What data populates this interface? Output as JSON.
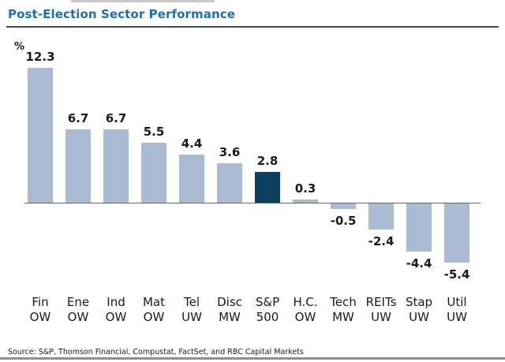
{
  "header": {
    "title": "Post-Election Sector Performance"
  },
  "chart_data": {
    "type": "bar",
    "title": "Post-Election Sector Performance",
    "xlabel": "",
    "ylabel": "%",
    "categories": [
      {
        "line1": "Fin",
        "line2": "OW"
      },
      {
        "line1": "Ene",
        "line2": "OW"
      },
      {
        "line1": "Ind",
        "line2": "OW"
      },
      {
        "line1": "Mat",
        "line2": "OW"
      },
      {
        "line1": "Tel",
        "line2": "UW"
      },
      {
        "line1": "Disc",
        "line2": "MW"
      },
      {
        "line1": "S&P",
        "line2": "500"
      },
      {
        "line1": "H.C.",
        "line2": "OW"
      },
      {
        "line1": "Tech",
        "line2": "MW"
      },
      {
        "line1": "REITs",
        "line2": "UW"
      },
      {
        "line1": "Stap",
        "line2": "UW"
      },
      {
        "line1": "Util",
        "line2": "UW"
      }
    ],
    "values": [
      12.3,
      6.7,
      6.7,
      5.5,
      4.4,
      3.6,
      2.8,
      0.3,
      -0.5,
      -2.4,
      -4.4,
      -5.4
    ],
    "highlight_index": 6,
    "bar_color": "#ACBBD4",
    "highlight_color": "#0E3E5E",
    "ylim": [
      -6.5,
      13.5
    ],
    "grid": false,
    "legend": null,
    "data_labels": true
  },
  "footer": {
    "source": "Source: S&P, Thomson Financial, Compustat, FactSet, and RBC Capital Markets"
  },
  "colors": {
    "title_text": "#1d6fae",
    "title_rule": "#4a4a4a",
    "axis_line": "#666666",
    "label_text": "#1a1a1a",
    "bottom_rule": "#8f8f8f"
  }
}
